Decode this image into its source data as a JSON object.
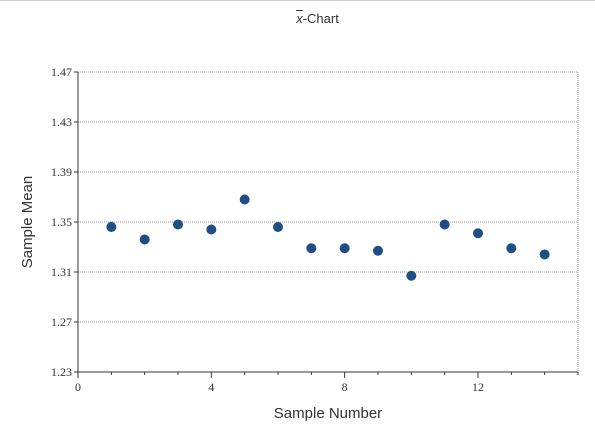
{
  "chart_data": {
    "type": "scatter",
    "title": "x̄-Chart",
    "title_parts": {
      "symbol": "x",
      "suffix": "-Chart"
    },
    "xlabel": "Sample Number",
    "ylabel": "Sample Mean",
    "xlim": [
      0,
      15
    ],
    "ylim": [
      1.23,
      1.47
    ],
    "x_ticks": [
      0,
      4,
      8,
      12
    ],
    "y_ticks": [
      1.23,
      1.27,
      1.31,
      1.35,
      1.39,
      1.43,
      1.47
    ],
    "y_tick_labels": [
      "1.23",
      "1.27",
      "1.31",
      "1.35",
      "1.39",
      "1.43",
      "1.47"
    ],
    "grid": true,
    "marker_color": "#1f4e85",
    "series": [
      {
        "x": [
          1,
          2,
          3,
          4,
          5,
          6,
          7,
          8,
          9,
          10,
          11,
          12,
          13,
          14
        ],
        "y": [
          1.346,
          1.336,
          1.348,
          1.344,
          1.368,
          1.346,
          1.329,
          1.329,
          1.327,
          1.307,
          1.348,
          1.341,
          1.329,
          1.324
        ]
      }
    ]
  }
}
